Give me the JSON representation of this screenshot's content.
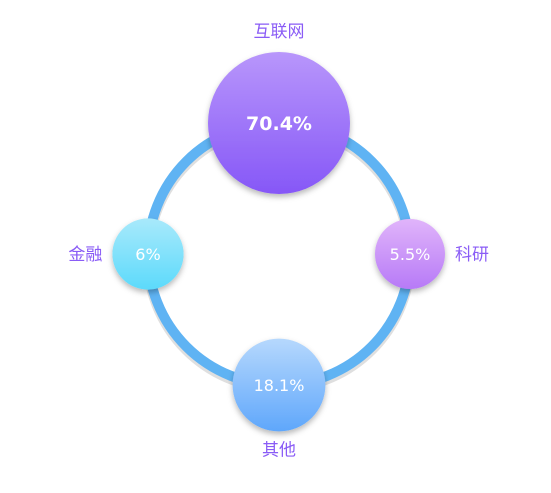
{
  "chart_data": {
    "type": "bubble-ring",
    "title": "",
    "ring_color": "#5fb3f3",
    "label_color": "#8a5cf6",
    "value_color": "#ffffff",
    "series": [
      {
        "category": "互联网",
        "value": 70.4,
        "display_value": "70.4%",
        "ring_position": "top",
        "label_placement": "above",
        "color_top": "#b896fb",
        "color_bottom": "#8657f7"
      },
      {
        "category": "科研",
        "value": 5.5,
        "display_value": "5.5%",
        "ring_position": "right",
        "label_placement": "right",
        "color_top": "#e0b4fa",
        "color_bottom": "#b77af7"
      },
      {
        "category": "其他",
        "value": 18.1,
        "display_value": "18.1%",
        "ring_position": "bottom",
        "label_placement": "below",
        "color_top": "#b6d8fd",
        "color_bottom": "#5fa7fb"
      },
      {
        "category": "金融",
        "value": 6,
        "display_value": "6%",
        "ring_position": "left",
        "label_placement": "left",
        "color_top": "#a8e9fb",
        "color_bottom": "#5cdafb"
      }
    ]
  }
}
